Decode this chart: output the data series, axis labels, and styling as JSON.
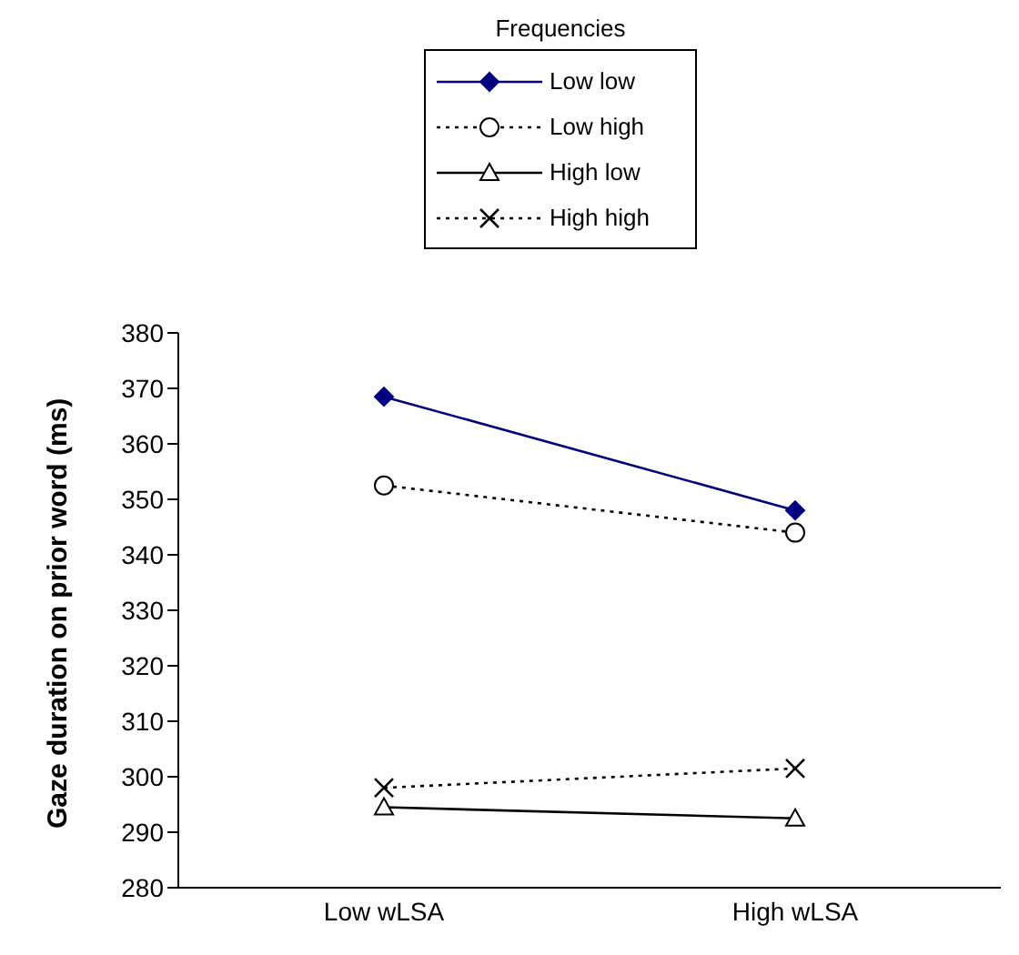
{
  "chart_data": {
    "type": "line",
    "ylabel": "Gaze duration on prior word (ms)",
    "legend_title": "Frequencies",
    "legend": "top",
    "categories": [
      "Low wLSA",
      "High wLSA"
    ],
    "ylim": [
      280,
      380
    ],
    "yticks": [
      280,
      290,
      300,
      310,
      320,
      330,
      340,
      350,
      360,
      370,
      380
    ],
    "grid": false,
    "series": [
      {
        "name": "Low low",
        "color": "#000080",
        "values": [
          368.5,
          348
        ],
        "marker": "diamond",
        "line_style": "solid"
      },
      {
        "name": "Low high",
        "color": "#000000",
        "values": [
          352.5,
          344
        ],
        "marker": "circle",
        "line_style": "dotted"
      },
      {
        "name": "High low",
        "color": "#000000",
        "values": [
          294.5,
          292.5
        ],
        "marker": "triangle",
        "line_style": "solid"
      },
      {
        "name": "High high",
        "color": "#000000",
        "values": [
          298,
          301.5
        ],
        "marker": "cross",
        "line_style": "dotted"
      }
    ]
  }
}
